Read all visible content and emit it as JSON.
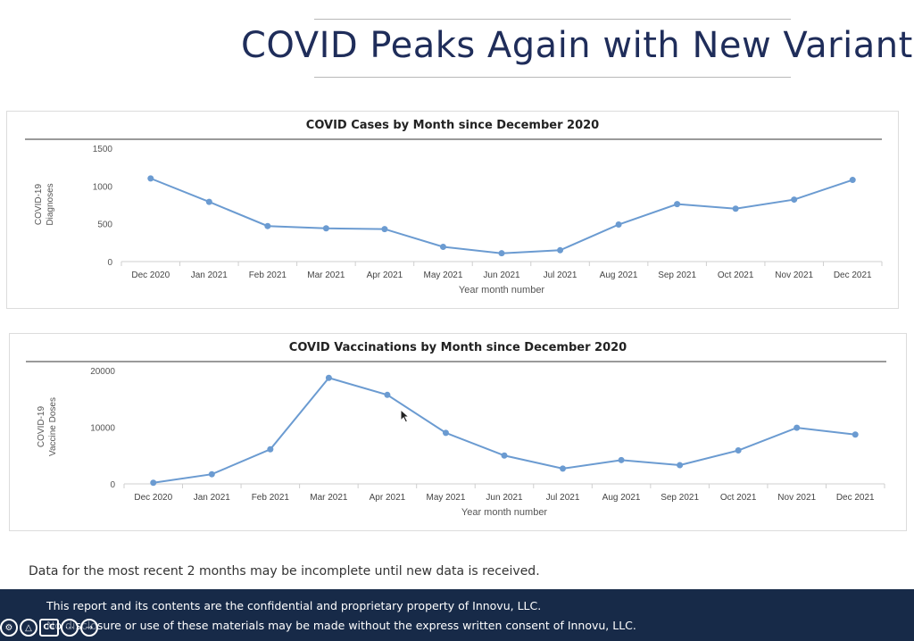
{
  "slide": {
    "title": "COVID Peaks Again with New Variants",
    "note": "Data for the most recent 2 months may be incomplete until new data is received."
  },
  "footer": {
    "line1": "This report and its contents are the confidential and proprietary property of Innovu, LLC.",
    "line2": "No disclosure or use of these materials may be made without the express written consent of Innovu, LLC.",
    "background": "#172a48"
  },
  "player_controls": [
    {
      "name": "settings-icon",
      "glyph": "⚙"
    },
    {
      "name": "warning-icon",
      "glyph": "△"
    },
    {
      "name": "captions-icon",
      "glyph": "CC"
    },
    {
      "name": "more-icon",
      "glyph": "⋯"
    },
    {
      "name": "forward-icon",
      "glyph": "→"
    }
  ],
  "colors": {
    "line": "#6b9bd1",
    "title": "#1f2d5a"
  },
  "chart_data": [
    {
      "type": "line",
      "title": "COVID Cases by Month since December 2020",
      "xlabel": "Year month number",
      "ylabel": [
        "COVID-19",
        "Diagnoses"
      ],
      "categories": [
        "Dec 2020",
        "Jan 2021",
        "Feb 2021",
        "Mar 2021",
        "Apr 2021",
        "May 2021",
        "Jun 2021",
        "Jul 2021",
        "Aug 2021",
        "Sep 2021",
        "Oct 2021",
        "Nov 2021",
        "Dec 2021"
      ],
      "values": [
        1100,
        790,
        470,
        440,
        430,
        195,
        110,
        150,
        490,
        760,
        700,
        820,
        1080
      ],
      "ylim": [
        0,
        1500
      ],
      "yticks": [
        0,
        500,
        1000,
        1500
      ],
      "grid": false,
      "legend": "none"
    },
    {
      "type": "line",
      "title": "COVID Vaccinations by Month since December 2020",
      "xlabel": "Year month number",
      "ylabel": [
        "COVID-19",
        "Vaccine Doses"
      ],
      "categories": [
        "Dec 2020",
        "Jan 2021",
        "Feb 2021",
        "Mar 2021",
        "Apr 2021",
        "May 2021",
        "Jun 2021",
        "Jul 2021",
        "Aug 2021",
        "Sep 2021",
        "Oct 2021",
        "Nov 2021",
        "Dec 2021"
      ],
      "values": [
        200,
        1700,
        6100,
        18700,
        15700,
        9000,
        5000,
        2700,
        4200,
        3300,
        5900,
        9900,
        8700
      ],
      "ylim": [
        0,
        20000
      ],
      "yticks": [
        0,
        10000,
        20000
      ],
      "grid": false,
      "legend": "none"
    }
  ]
}
